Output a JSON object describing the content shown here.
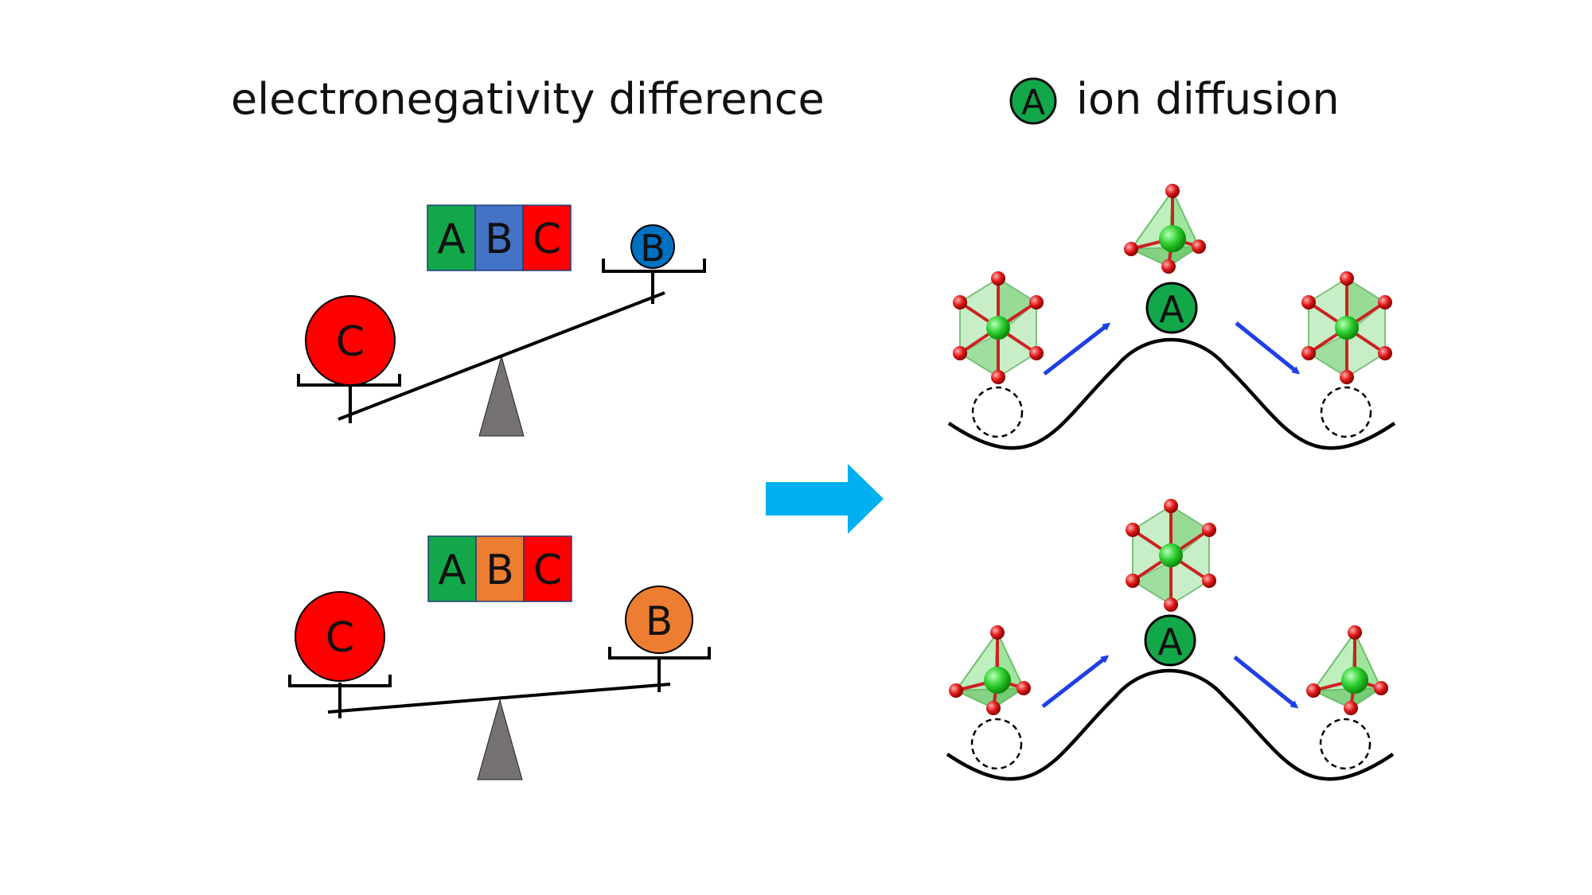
{
  "titles": {
    "left": "electronegativity difference",
    "right": "ion diffusion"
  },
  "legend": {
    "ion_label": "A"
  },
  "top_panel": {
    "formula": [
      "A",
      "B",
      "C"
    ],
    "heavy_ball": "C",
    "light_ball": "B",
    "peak_ion": "A"
  },
  "bottom_panel": {
    "formula": [
      "A",
      "B",
      "C"
    ],
    "heavy_ball": "C",
    "light_ball": "B",
    "peak_ion": "A"
  },
  "colors": {
    "element_A": "#12a84a",
    "element_B_top": "#4472c4",
    "element_B_bottom": "#ed7d31",
    "element_C": "#ff0000",
    "ball_B_top": "#0070c0",
    "fulcrum": "#767171",
    "big_arrow": "#00b0f0",
    "small_arrow": "#1f3fe6",
    "oxygen": "#e02020"
  },
  "icons": [
    "big-right-arrow-icon",
    "octahedron-icon",
    "tetrahedron-icon",
    "diffusion-arrow-icon"
  ]
}
